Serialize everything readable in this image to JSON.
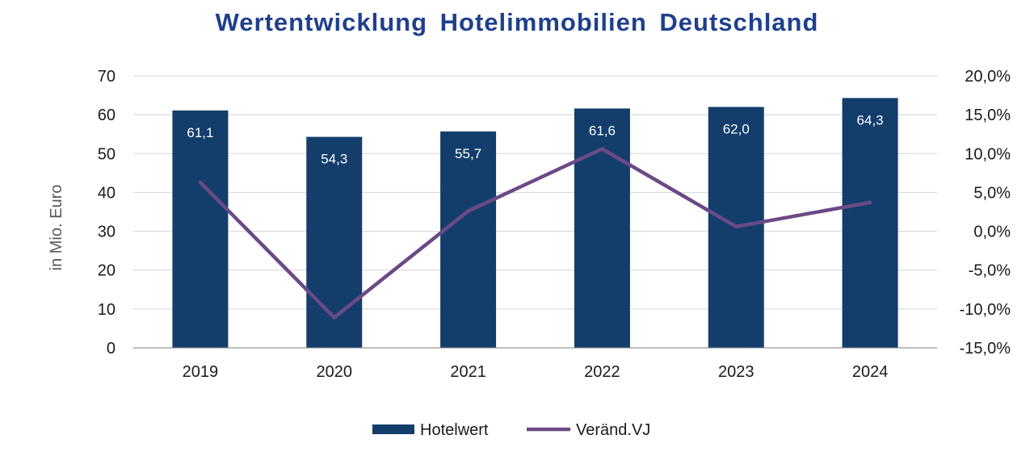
{
  "chart_data": {
    "type": "bar",
    "title": "Wertentwicklung Hotelimmobilien Deutschland",
    "categories": [
      "2019",
      "2020",
      "2021",
      "2022",
      "2023",
      "2024"
    ],
    "series": [
      {
        "name": "Hotelwert",
        "type": "bar",
        "axis": "left",
        "values": [
          61.1,
          54.3,
          55.7,
          61.6,
          62.0,
          64.3
        ],
        "value_labels": [
          "61,1",
          "54,3",
          "55,7",
          "61,6",
          "62,0",
          "64,3"
        ]
      },
      {
        "name": "Veränd.VJ",
        "type": "line",
        "axis": "right",
        "values": [
          6.3,
          -11.1,
          2.6,
          10.6,
          0.6,
          3.7
        ]
      }
    ],
    "ylabel": "in Mio. Euro",
    "ylim": [
      0,
      70
    ],
    "yticks": [
      0,
      10,
      20,
      30,
      40,
      50,
      60,
      70
    ],
    "y2lim": [
      -15,
      20
    ],
    "y2ticks": [
      -15,
      -10,
      -5,
      0,
      5,
      10,
      15,
      20
    ],
    "y2tick_labels": [
      "-15,0%",
      "-10,0%",
      "-5,0%",
      "0,0%",
      "5,0%",
      "10,0%",
      "15,0%",
      "20,0%"
    ],
    "grid": true,
    "legend_position": "bottom",
    "colors": {
      "title": "#1f3f8f",
      "bar": "#133e6c",
      "line": "#6b4a87",
      "grid": "#d4d4d4",
      "axis_text": "#1a1a1a",
      "ylabel": "#595959",
      "bar_label": "#ffffff"
    }
  }
}
